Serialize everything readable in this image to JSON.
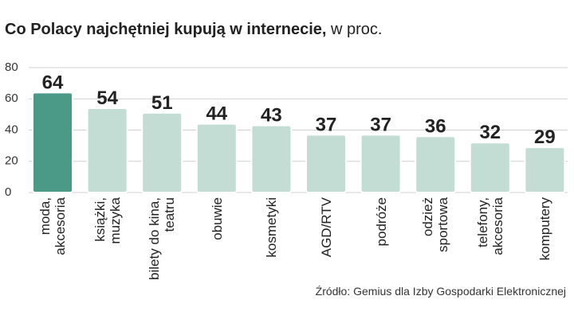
{
  "chart_data": {
    "type": "bar",
    "title": "Co Polacy najchętniej kupują w internecie,",
    "subtitle": "w proc.",
    "categories": [
      "moda,\nakcesoria",
      "książki,\nmuzyka",
      "bilety do kina,\nteatru",
      "obuwie",
      "kosmetyki",
      "AGD/RTV",
      "podróże",
      "odzież\nsportowa",
      "telefony,\nakcesoria",
      "komputery"
    ],
    "values": [
      64,
      54,
      51,
      44,
      43,
      37,
      37,
      36,
      32,
      29
    ],
    "colors": [
      "#4a9a87",
      "#c3ddd4",
      "#c3ddd4",
      "#c3ddd4",
      "#c3ddd4",
      "#c3ddd4",
      "#c3ddd4",
      "#c3ddd4",
      "#c3ddd4",
      "#c3ddd4"
    ],
    "ylim": [
      0,
      80
    ],
    "yticks": [
      0,
      20,
      40,
      60,
      80
    ],
    "grid": true,
    "source": "Źródło: Gemius dla Izby Gospodarki Elektronicznej"
  }
}
